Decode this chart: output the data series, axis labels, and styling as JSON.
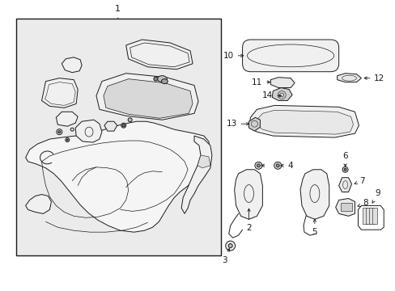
{
  "bg_color": "#ffffff",
  "fig_width": 4.89,
  "fig_height": 3.6,
  "dpi": 100,
  "box_bg": "#ebebeb",
  "lc": "#1a1a1a",
  "part_fill": "#ffffff",
  "lw": 0.7
}
